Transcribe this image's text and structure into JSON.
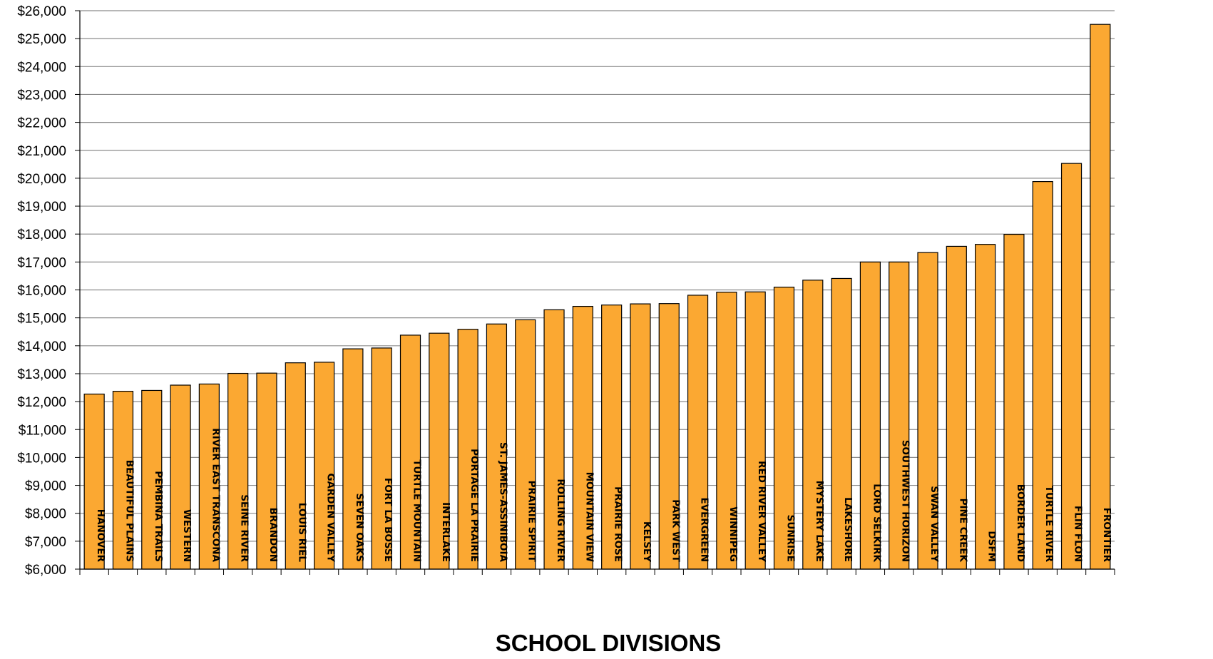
{
  "chart_data": {
    "type": "bar",
    "title": "",
    "xlabel": "SCHOOL DIVISIONS",
    "ylabel": "",
    "ylim": [
      6000,
      26000
    ],
    "ytick_step": 1000,
    "ytick_labels": [
      "$6,000",
      "$7,000",
      "$8,000",
      "$9,000",
      "$10,000",
      "$11,000",
      "$12,000",
      "$13,000",
      "$14,000",
      "$15,000",
      "$16,000",
      "$17,000",
      "$18,000",
      "$19,000",
      "$20,000",
      "$21,000",
      "$22,000",
      "$23,000",
      "$24,000",
      "$25,000",
      "$26,000"
    ],
    "grid": true,
    "legend": "none",
    "bar_color": "#FBA832",
    "categories": [
      "HANOVER",
      "BEAUTIFUL PLAINS",
      "PEMBINA TRAILS",
      "WESTERN",
      "RIVER EAST TRANSCONA",
      "SEINE RIVER",
      "BRANDON",
      "LOUIS RIEL",
      "GARDEN VALLEY",
      "SEVEN OAKS",
      "FORT LA BOSSE",
      "TURTLE MOUNTAIN",
      "INTERLAKE",
      "PORTAGE LA PRAIRIE",
      "ST. JAMES-ASSINIBOIA",
      "PRAIRIE SPIRIT",
      "ROLLING RIVER",
      "MOUNTAIN VIEW",
      "PRAIRIE ROSE",
      "KELSEY",
      "PARK WEST",
      "EVERGREEN",
      "WINNIPEG",
      "RED RIVER VALLEY",
      "SUNRISE",
      "MYSTERY LAKE",
      "LAKESHORE",
      "LORD SELKIRK",
      "SOUTHWEST HORIZON",
      "SWAN VALLEY",
      "PINE CREEK",
      "DSFM",
      "BORDER LAND",
      "TURTLE RIVER",
      "FLIN FLON",
      "FRONTIER"
    ],
    "values": [
      12270,
      12370,
      12400,
      12590,
      12630,
      13010,
      13020,
      13390,
      13410,
      13890,
      13920,
      14380,
      14450,
      14590,
      14780,
      14930,
      15290,
      15410,
      15460,
      15500,
      15510,
      15810,
      15920,
      15930,
      16100,
      16350,
      16410,
      17000,
      17000,
      17340,
      17560,
      17630,
      17990,
      19880,
      20530,
      25510
    ]
  }
}
